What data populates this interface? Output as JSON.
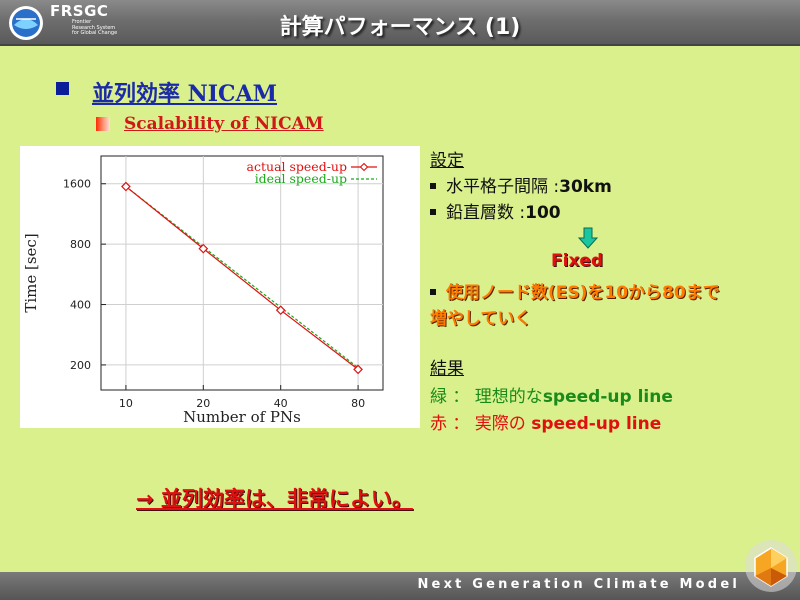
{
  "header": {
    "logo_text": "FRSGC",
    "logo_sub_lines": [
      "Frontier",
      "Research System",
      "for Global Change"
    ],
    "title": "計算パフォーマンス (1)"
  },
  "heading": {
    "main": "並列効率 NICAM",
    "sub": "Scalability of NICAM"
  },
  "settings": {
    "label": "設定",
    "item1_label": "水平格子間隔 :",
    "item1_value": "30km",
    "item2_label": "鉛直層数 :",
    "item2_value": "100",
    "fixed": "Fixed",
    "item3_line1": "使用ノード数(ES)を10から80まで",
    "item3_line2": "増やしていく"
  },
  "results": {
    "label": "結果",
    "green_prefix": "緑 ： 理想的な",
    "green_bold": "speed-up line",
    "red_prefix": "赤 ： 実際の ",
    "red_bold": "speed-up line"
  },
  "conclusion": "→ 並列効率は、非常によい。",
  "footer": {
    "text": "Next Generation Climate Model"
  },
  "colors": {
    "background": "#d9f08c",
    "actual_line": "#e01010",
    "ideal_line": "#1aa81a",
    "heading_blue": "#1a2aa8"
  },
  "chart_data": {
    "type": "line",
    "scale": "log-log",
    "x": [
      10,
      20,
      40,
      80
    ],
    "x_tick_labels": [
      "10",
      "20",
      "40",
      "80"
    ],
    "y_ticks": [
      200,
      400,
      800,
      1600
    ],
    "y_tick_labels": [
      "200",
      "400",
      "800",
      "1600"
    ],
    "xlim": [
      8,
      100
    ],
    "ylim": [
      150,
      2200
    ],
    "xlabel": "Number of PNs",
    "ylabel": "Time [sec]",
    "legend_position": "top-right",
    "series": [
      {
        "name": "actual speed-up",
        "values": [
          1550,
          760,
          375,
          190
        ],
        "color": "#e01010",
        "marker": "diamond",
        "style": "solid"
      },
      {
        "name": "ideal speed-up",
        "values": [
          1550,
          775,
          387.5,
          193.75
        ],
        "color": "#1aa81a",
        "marker": "none",
        "style": "dashed"
      }
    ]
  }
}
